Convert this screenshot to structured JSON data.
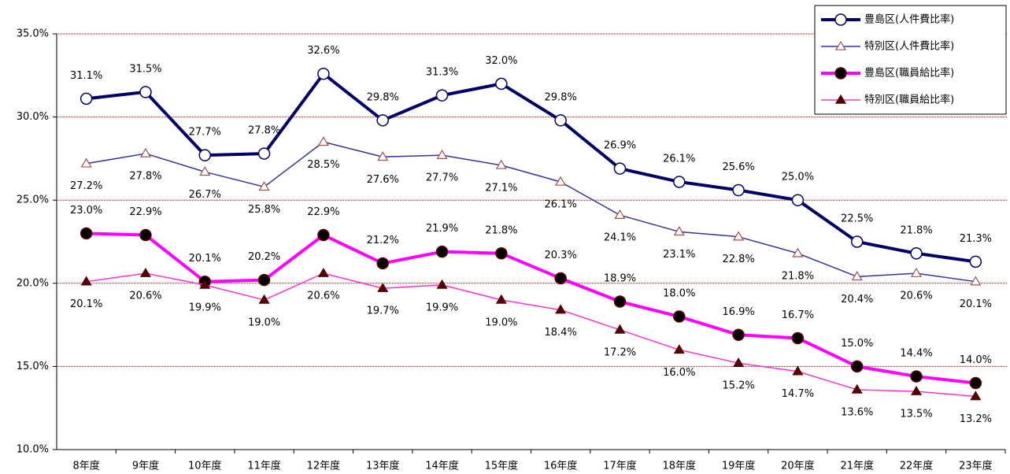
{
  "chart_data": {
    "type": "line",
    "categories": [
      "8年度",
      "9年度",
      "10年度",
      "11年度",
      "12年度",
      "13年度",
      "14年度",
      "15年度",
      "16年度",
      "17年度",
      "18年度",
      "19年度",
      "20年度",
      "21年度",
      "22年度",
      "23年度"
    ],
    "ylim": [
      10,
      35
    ],
    "yticks": [
      {
        "value": 10,
        "label": "10.0%"
      },
      {
        "value": 15,
        "label": "15.0%"
      },
      {
        "value": 20,
        "label": "20.0%"
      },
      {
        "value": 25,
        "label": "25.0%"
      },
      {
        "value": 30,
        "label": "30.0%"
      },
      {
        "value": 35,
        "label": "35.0%"
      }
    ],
    "grid": true,
    "legend": "top-right",
    "series": [
      {
        "name": "豊島区(人件費比率)",
        "color": "#000066",
        "values": [
          31.1,
          31.5,
          27.7,
          27.8,
          32.6,
          29.8,
          31.3,
          32.0,
          29.8,
          26.9,
          26.1,
          25.6,
          25.0,
          22.5,
          21.8,
          21.3
        ],
        "value_labels": [
          "31.1%",
          "31.5%",
          "27.7%",
          "27.8%",
          "32.6%",
          "29.8%",
          "31.3%",
          "32.0%",
          "29.8%",
          "26.9%",
          "26.1%",
          "25.6%",
          "25.0%",
          "22.5%",
          "21.8%",
          "21.3%"
        ]
      },
      {
        "name": "特別区(人件費比率)",
        "color": "#333399",
        "values": [
          27.2,
          27.8,
          26.7,
          25.8,
          28.5,
          27.6,
          27.7,
          27.1,
          26.1,
          24.1,
          23.1,
          22.8,
          21.8,
          20.4,
          20.6,
          20.1
        ],
        "value_labels": [
          "27.2%",
          "27.8%",
          "26.7%",
          "25.8%",
          "28.5%",
          "27.6%",
          "27.7%",
          "27.1%",
          "26.1%",
          "24.1%",
          "23.1%",
          "22.8%",
          "21.8%",
          "20.4%",
          "20.6%",
          "20.1%"
        ]
      },
      {
        "name": "豊島区(職員給比率)",
        "color": "#ff00ff",
        "values": [
          23.0,
          22.9,
          20.1,
          20.2,
          22.9,
          21.2,
          21.9,
          21.8,
          20.3,
          18.9,
          18.0,
          16.9,
          16.7,
          15.0,
          14.4,
          14.0
        ],
        "value_labels": [
          "23.0%",
          "22.9%",
          "20.1%",
          "20.2%",
          "22.9%",
          "21.2%",
          "21.9%",
          "21.8%",
          "20.3%",
          "18.9%",
          "18.0%",
          "16.9%",
          "16.7%",
          "15.0%",
          "14.4%",
          "14.0%"
        ]
      },
      {
        "name": "特別区(職員給比率)",
        "color": "#ff33cc",
        "values": [
          20.1,
          20.6,
          19.9,
          19.0,
          20.6,
          19.7,
          19.9,
          19.0,
          18.4,
          17.2,
          16.0,
          15.2,
          14.7,
          13.6,
          13.5,
          13.2
        ],
        "value_labels": [
          "20.1%",
          "20.6%",
          "19.9%",
          "19.0%",
          "20.6%",
          "19.7%",
          "19.9%",
          "19.0%",
          "18.4%",
          "17.2%",
          "16.0%",
          "15.2%",
          "14.7%",
          "13.6%",
          "13.5%",
          "13.2%"
        ]
      }
    ]
  }
}
